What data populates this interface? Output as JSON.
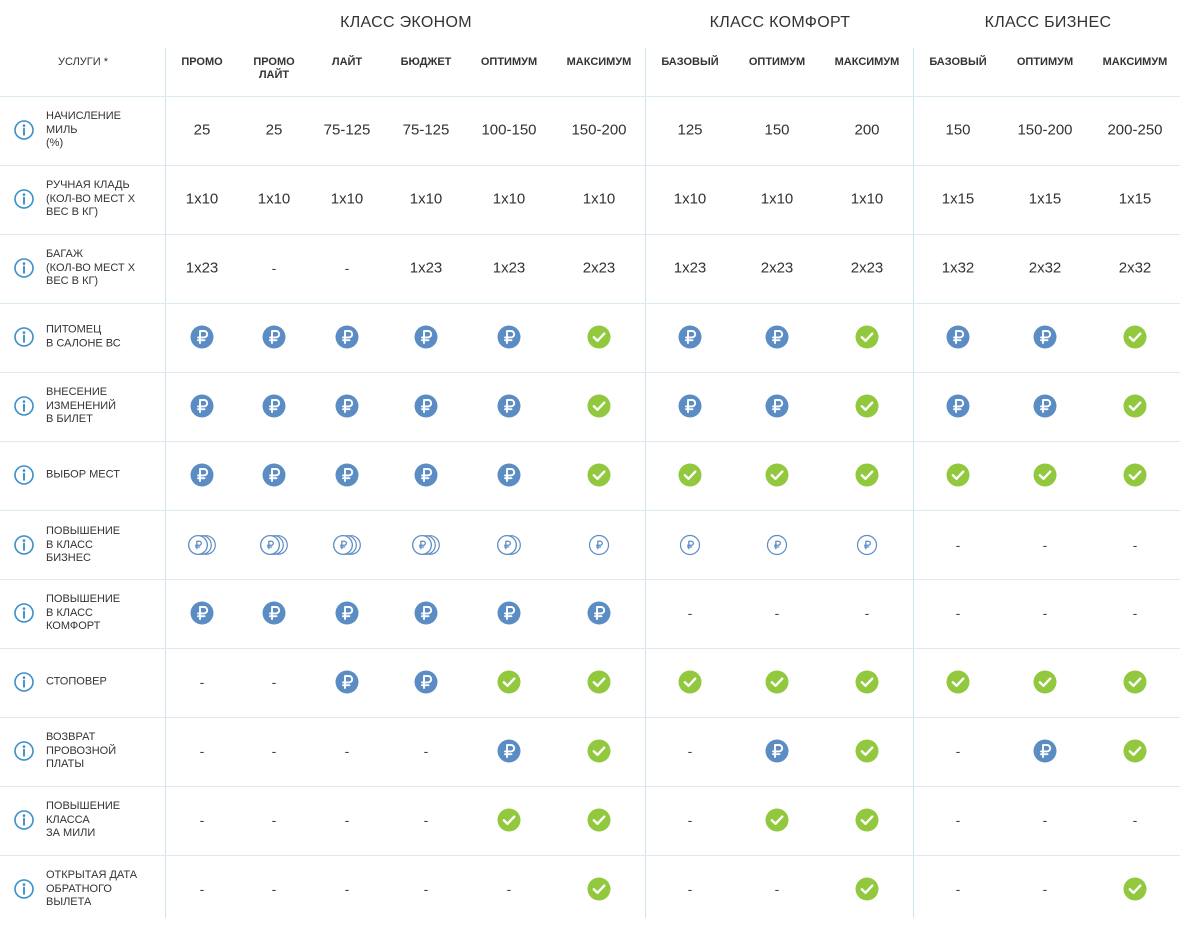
{
  "header": {
    "services_label": "УСЛУГИ *",
    "classes": [
      {
        "name": "КЛАСС ЭКОНОМ",
        "span": [
          0,
          5
        ]
      },
      {
        "name": "КЛАСС КОМФОРТ",
        "span": [
          6,
          8
        ]
      },
      {
        "name": "КЛАСС БИЗНЕС",
        "span": [
          9,
          11
        ]
      }
    ],
    "tariffs": [
      "ПРОМО",
      "ПРОМО\nЛАЙТ",
      "ЛАЙТ",
      "БЮДЖЕТ",
      "ОПТИМУМ",
      "МАКСИМУМ",
      "БАЗОВЫЙ",
      "ОПТИМУМ",
      "МАКСИМУМ",
      "БАЗОВЫЙ",
      "ОПТИМУМ",
      "МАКСИМУМ"
    ]
  },
  "icon_legend": {
    "paid": "ruble-icon",
    "included": "check-icon",
    "paid_multi": "ruble-coins-icon",
    "paid_outline": "ruble-outline-icon",
    "unavailable": "-"
  },
  "colors": {
    "paid_blue": "#5b8dc4",
    "check_green": "#92c83e",
    "divider": "#cfe3ee",
    "info_blue": "#3d8fc9"
  },
  "rows": [
    {
      "label": "НАЧИСЛЕНИЕ\nМИЛЬ\n(%)",
      "cells": [
        "25",
        "25",
        "75-125",
        "75-125",
        "100-150",
        "150-200",
        "125",
        "150",
        "200",
        "150",
        "150-200",
        "200-250"
      ]
    },
    {
      "label": "РУЧНАЯ КЛАДЬ\n(КОЛ-ВО МЕСТ Х\nВЕС В КГ)",
      "cells": [
        "1x10",
        "1x10",
        "1x10",
        "1x10",
        "1x10",
        "1x10",
        "1x10",
        "1x10",
        "1x10",
        "1x15",
        "1x15",
        "1x15"
      ]
    },
    {
      "label": "БАГАЖ\n(КОЛ-ВО МЕСТ Х\nВЕС В КГ)",
      "cells": [
        "1x23",
        "-",
        "-",
        "1x23",
        "1x23",
        "2x23",
        "1x23",
        "2x23",
        "2x23",
        "1x32",
        "2x32",
        "2x32"
      ]
    },
    {
      "label": "ПИТОМЕЦ\nВ САЛОНЕ ВС",
      "cells": [
        "ruble",
        "ruble",
        "ruble",
        "ruble",
        "ruble",
        "check",
        "ruble",
        "ruble",
        "check",
        "ruble",
        "ruble",
        "check"
      ]
    },
    {
      "label": "ВНЕСЕНИЕ\nИЗМЕНЕНИЙ\nВ БИЛЕТ",
      "cells": [
        "ruble",
        "ruble",
        "ruble",
        "ruble",
        "ruble",
        "check",
        "ruble",
        "ruble",
        "check",
        "ruble",
        "ruble",
        "check"
      ]
    },
    {
      "label": "ВЫБОР МЕСТ",
      "cells": [
        "ruble",
        "ruble",
        "ruble",
        "ruble",
        "ruble",
        "check",
        "check",
        "check",
        "check",
        "check",
        "check",
        "check"
      ]
    },
    {
      "label": "ПОВЫШЕНИЕ\nВ КЛАСС\nБИЗНЕС",
      "cells": [
        "coins3",
        "coins3",
        "coins3",
        "coins3",
        "coins2",
        "outline",
        "outline",
        "outline",
        "outline",
        "-",
        "-",
        "-"
      ]
    },
    {
      "label": "ПОВЫШЕНИЕ\nВ КЛАСС\nКОМФОРТ",
      "cells": [
        "ruble",
        "ruble",
        "ruble",
        "ruble",
        "ruble",
        "ruble",
        "-",
        "-",
        "-",
        "-",
        "-",
        "-"
      ]
    },
    {
      "label": "СТОПОВЕР",
      "cells": [
        "-",
        "-",
        "ruble",
        "ruble",
        "check",
        "check",
        "check",
        "check",
        "check",
        "check",
        "check",
        "check"
      ]
    },
    {
      "label": "ВОЗВРАТ\nПРОВОЗНОЙ\nПЛАТЫ",
      "cells": [
        "-",
        "-",
        "-",
        "-",
        "ruble",
        "check",
        "-",
        "ruble",
        "check",
        "-",
        "ruble",
        "check"
      ]
    },
    {
      "label": "ПОВЫШЕНИЕ\nКЛАССА\nЗА МИЛИ",
      "cells": [
        "-",
        "-",
        "-",
        "-",
        "check",
        "check",
        "-",
        "check",
        "check",
        "-",
        "-",
        "-"
      ]
    },
    {
      "label": "ОТКРЫТАЯ ДАТА\nОБРАТНОГО\nВЫЛЕТА",
      "cells": [
        "-",
        "-",
        "-",
        "-",
        "-",
        "check",
        "-",
        "-",
        "check",
        "-",
        "-",
        "check"
      ]
    }
  ]
}
